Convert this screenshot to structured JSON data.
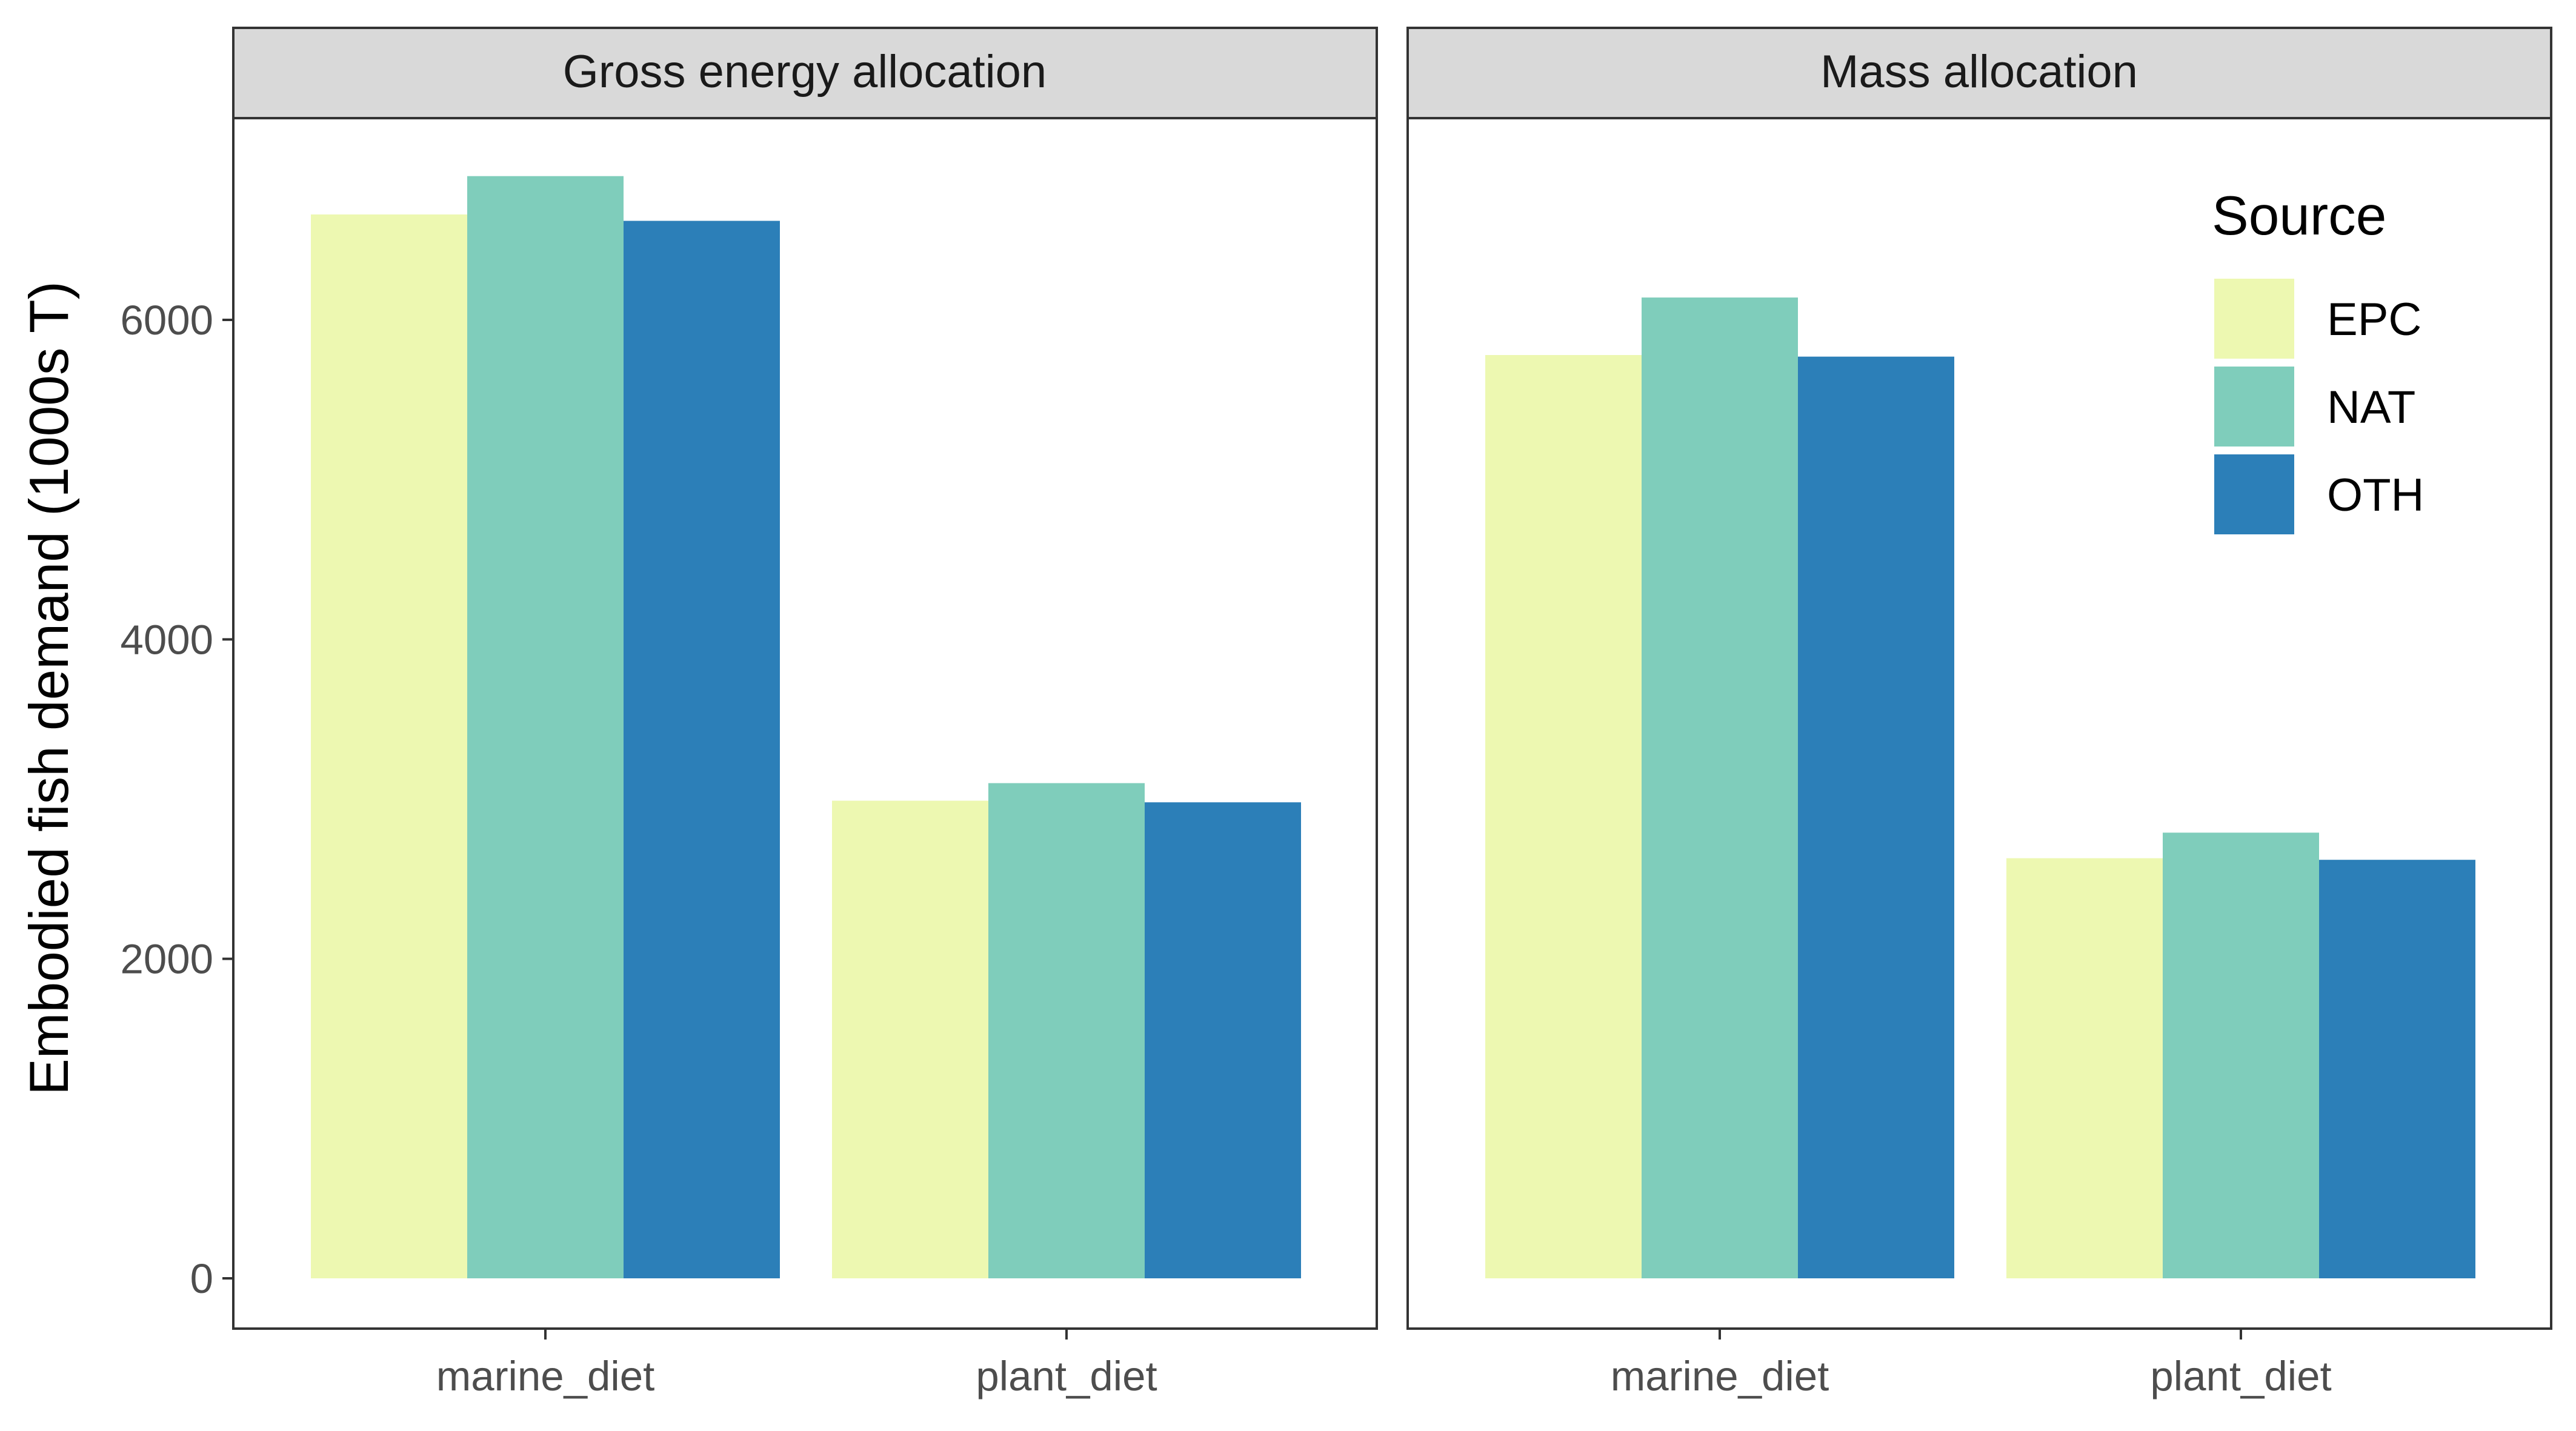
{
  "chart_data": {
    "type": "bar",
    "ylabel": "Embodied fish demand (1000s T)",
    "xlabel": "",
    "ylim": [
      0,
      7000
    ],
    "yticks": [
      0,
      2000,
      4000,
      6000
    ],
    "categories": [
      "marine_diet",
      "plant_diet"
    ],
    "legend": {
      "title": "Source",
      "position": "top-right",
      "entries": [
        "EPC",
        "NAT",
        "OTH"
      ]
    },
    "colors": {
      "EPC": "#edf8b1",
      "NAT": "#7fcdbb",
      "OTH": "#2c7fb8"
    },
    "grid": false,
    "facets": [
      {
        "title": "Gross energy allocation",
        "series": [
          {
            "name": "EPC",
            "values": [
              6660,
              2990
            ]
          },
          {
            "name": "NAT",
            "values": [
              6900,
              3100
            ]
          },
          {
            "name": "OTH",
            "values": [
              6620,
              2980
            ]
          }
        ]
      },
      {
        "title": "Mass allocation",
        "series": [
          {
            "name": "EPC",
            "values": [
              5780,
              2630
            ]
          },
          {
            "name": "NAT",
            "values": [
              6140,
              2790
            ]
          },
          {
            "name": "OTH",
            "values": [
              5770,
              2620
            ]
          }
        ]
      }
    ]
  }
}
